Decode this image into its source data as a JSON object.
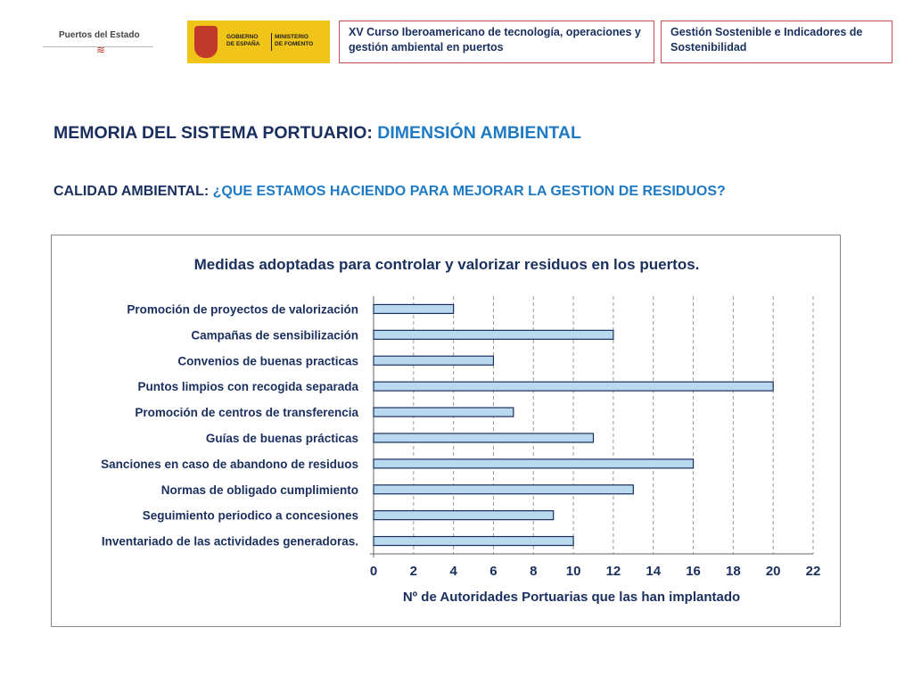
{
  "header": {
    "logo1_text": "Puertos del Estado",
    "logo2_line1": "GOBIERNO",
    "logo2_line2": "DE ESPAÑA",
    "logo2_line3": "MINISTERIO",
    "logo2_line4": "DE FOMENTO",
    "course_title": "XV Curso Iberoamericano de tecnología, operaciones y gestión ambiental en puertos",
    "topic_title": "Gestión Sostenible e Indicadores de Sostenibilidad"
  },
  "main": {
    "title_prefix": "MEMORIA DEL SISTEMA PORTUARIO: ",
    "title_highlight": "DIMENSIÓN AMBIENTAL",
    "subtitle_prefix": "CALIDAD AMBIENTAL: ",
    "subtitle_highlight": "¿QUE ESTAMOS HACIENDO PARA MEJORAR LA GESTION DE RESIDUOS?"
  },
  "chart_data": {
    "type": "bar",
    "orientation": "horizontal",
    "title": "Medidas adoptadas para controlar y valorizar residuos en los puertos.",
    "xlabel": "Nº de Autoridades Portuarias que las han implantado",
    "ylabel": "",
    "categories": [
      "Promoción de proyectos de valorización",
      "Campañas de sensibilización",
      "Convenios de buenas practicas",
      "Puntos limpios con recogida separada",
      "Promoción de centros de transferencia",
      "Guías de buenas prácticas",
      "Sanciones en caso de abandono de residuos",
      "Normas de obligado cumplimiento",
      "Seguimiento periodico a concesiones",
      "Inventariado de las actividades generadoras."
    ],
    "values": [
      4,
      12,
      6,
      20,
      7,
      11,
      16,
      13,
      9,
      10
    ],
    "xlim": [
      0,
      22
    ],
    "ticks": [
      "0",
      "2",
      "4",
      "6",
      "8",
      "10",
      "12",
      "14",
      "16",
      "18",
      "20",
      "22"
    ],
    "grid": true,
    "bar_color": "#b8d9ee",
    "bar_edge": "#1a2f5e",
    "grid_color": "#9a9a9a"
  }
}
